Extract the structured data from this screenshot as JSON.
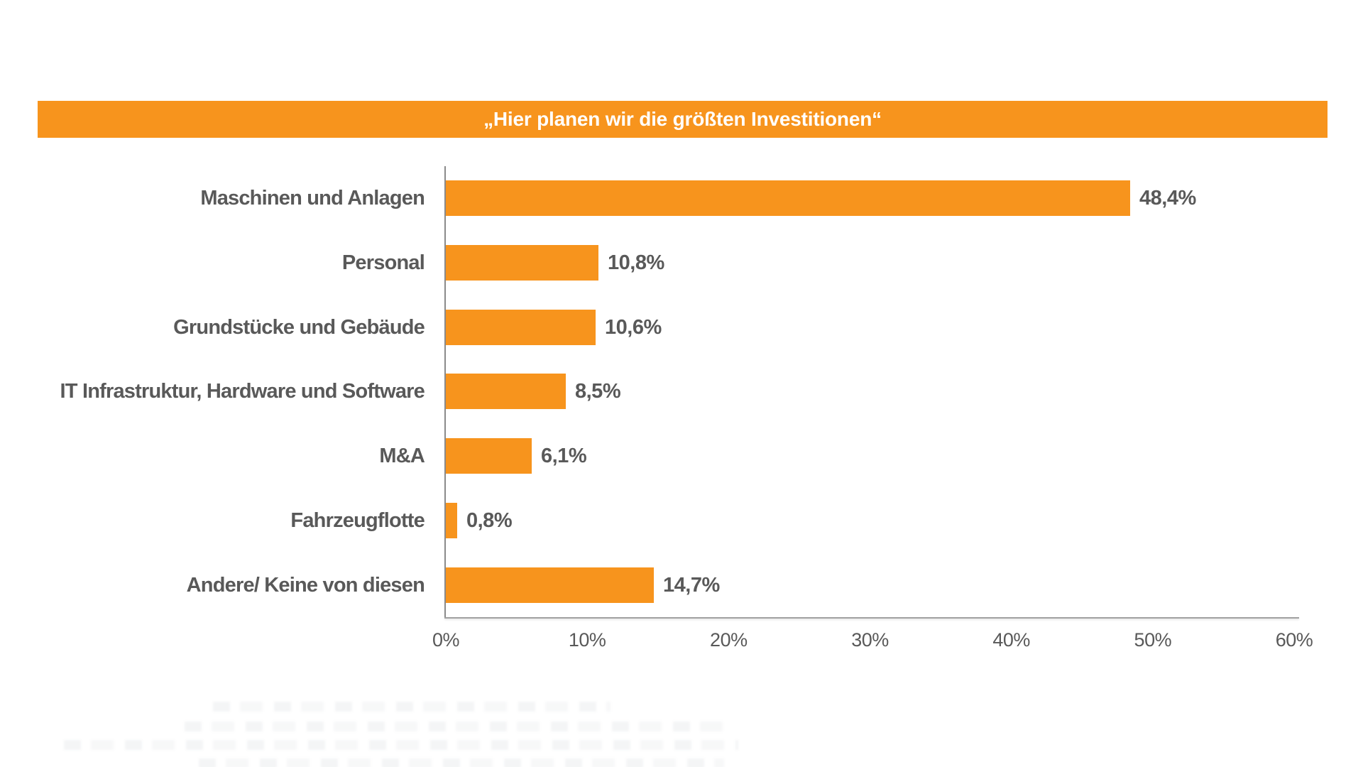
{
  "banner": {
    "title": "„Hier planen wir die größten Investitionen“",
    "bg_color": "#F7941D",
    "text_color": "#FFFFFF"
  },
  "chart_data": {
    "type": "bar",
    "orientation": "horizontal",
    "title": "„Hier planen wir die größten Investitionen“",
    "categories": [
      "Maschinen und Anlagen",
      "Personal",
      "Grundstücke und Gebäude",
      "IT Infrastruktur, Hardware und Software",
      "M&A",
      "Fahrzeugflotte",
      "Andere/ Keine von diesen"
    ],
    "values": [
      48.4,
      10.8,
      10.6,
      8.5,
      6.1,
      0.8,
      14.7
    ],
    "value_labels": [
      "48,4%",
      "10,8%",
      "10,6%",
      "8,5%",
      "6,1%",
      "0,8%",
      "14,7%"
    ],
    "xlabel": "",
    "ylabel": "",
    "xlim": [
      0,
      60
    ],
    "x_tick_values": [
      0,
      10,
      20,
      30,
      40,
      50,
      60
    ],
    "x_tick_labels": [
      "0%",
      "10%",
      "20%",
      "30%",
      "40%",
      "50%",
      "60%"
    ],
    "grid": false,
    "legend": "none",
    "bar_color": "#F7941D",
    "label_color": "#595959",
    "axis_color": "#8A8A8A"
  }
}
